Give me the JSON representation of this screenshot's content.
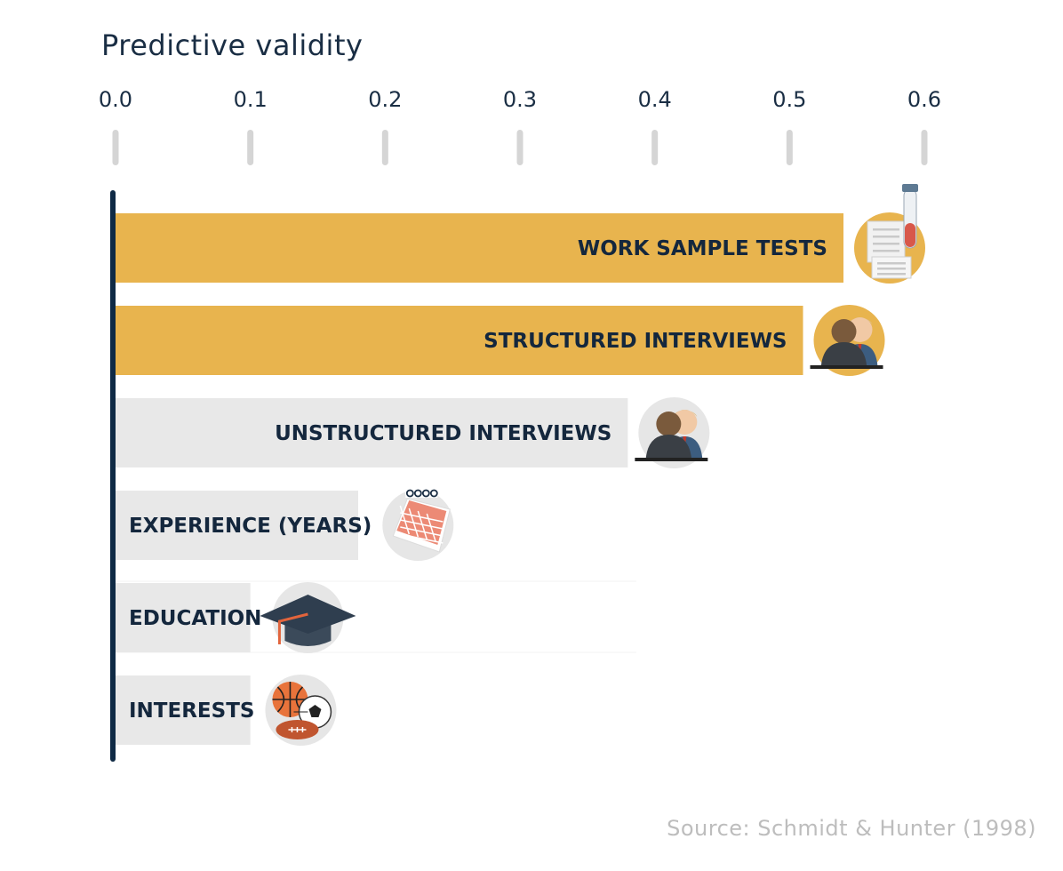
{
  "chart_data": {
    "type": "bar",
    "orientation": "horizontal",
    "title": "Predictive validity",
    "xlim": [
      0,
      0.6
    ],
    "ticks": [
      "0.0",
      "0.1",
      "0.2",
      "0.3",
      "0.4",
      "0.5",
      "0.6"
    ],
    "categories": [
      "WORK SAMPLE TESTS",
      "STRUCTURED INTERVIEWS",
      "UNSTRUCTURED INTERVIEWS",
      "EXPERIENCE (YEARS)",
      "EDUCATION",
      "INTERESTS"
    ],
    "values": [
      0.54,
      0.51,
      0.38,
      0.18,
      0.1,
      0.1
    ],
    "highlight": [
      true,
      true,
      false,
      false,
      false,
      false
    ],
    "icons": [
      "test-tube-clipboard-icon",
      "interview-icon",
      "interview-icon",
      "calendar-icon",
      "graduation-cap-icon",
      "sports-balls-icon"
    ],
    "colors": {
      "highlight": "#e8b44e",
      "normal": "#e8e8e8",
      "text": "#14273d",
      "axis": "#0f2a45",
      "tick": "#d5d5d5",
      "icon_bg_highlight": "#e8b44e",
      "icon_bg_normal": "#e6e6e6"
    },
    "grid": false,
    "legend": "none"
  },
  "source": "Source: Schmidt & Hunter (1998)"
}
